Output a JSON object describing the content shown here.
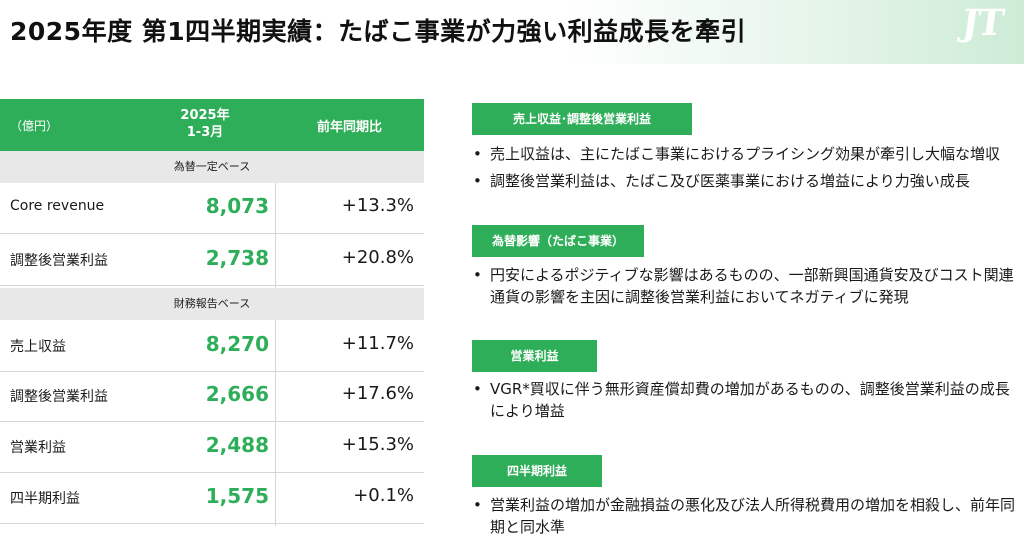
{
  "header": {
    "title": "2025年度 第1四半期実績：たばこ事業が力強い利益成長を牽引",
    "logo_text": "JT"
  },
  "table": {
    "unit": "（億円）",
    "col_year": "2025年",
    "col_period": "1-3月",
    "col_yoy": "前年同期比",
    "band1": "為替一定ベース",
    "band2": "財務報告ベース",
    "rows": [
      {
        "label": "Core revenue",
        "value": "8,073",
        "yoy": "+13.3%"
      },
      {
        "label": "調整後営業利益",
        "value": "2,738",
        "yoy": "+20.8%"
      },
      {
        "label": "売上収益",
        "value": "8,270",
        "yoy": "+11.7%"
      },
      {
        "label": "調整後営業利益",
        "value": "2,666",
        "yoy": "+17.6%"
      },
      {
        "label": "営業利益",
        "value": "2,488",
        "yoy": "+15.3%"
      },
      {
        "label": "四半期利益",
        "value": "1,575",
        "yoy": "+0.1%"
      }
    ]
  },
  "sections": [
    {
      "tag": "売上収益･調整後営業利益",
      "bullets": [
        "売上収益は、主にたばこ事業におけるプライシング効果が牽引し大幅な増収",
        "調整後営業利益は、たばこ及び医薬事業における増益により力強い成長"
      ]
    },
    {
      "tag": "為替影響（たばこ事業）",
      "bullets": [
        "円安によるポジティブな影響はあるものの、一部新興国通貨安及びコスト関連通貨の影響を主因に調整後営業利益においてネガティブに発現"
      ]
    },
    {
      "tag": "営業利益",
      "bullets": [
        "VGR*買収に伴う無形資産償却費の増加があるものの、調整後営業利益の成長により増益"
      ]
    },
    {
      "tag": "四半期利益",
      "bullets": [
        "営業利益の増加が金融損益の悪化及び法人所得税費用の増加を相殺し、前年同期と同水準"
      ]
    }
  ],
  "colors": {
    "accent": "#2fae5a",
    "band": "#e8e8e8"
  }
}
